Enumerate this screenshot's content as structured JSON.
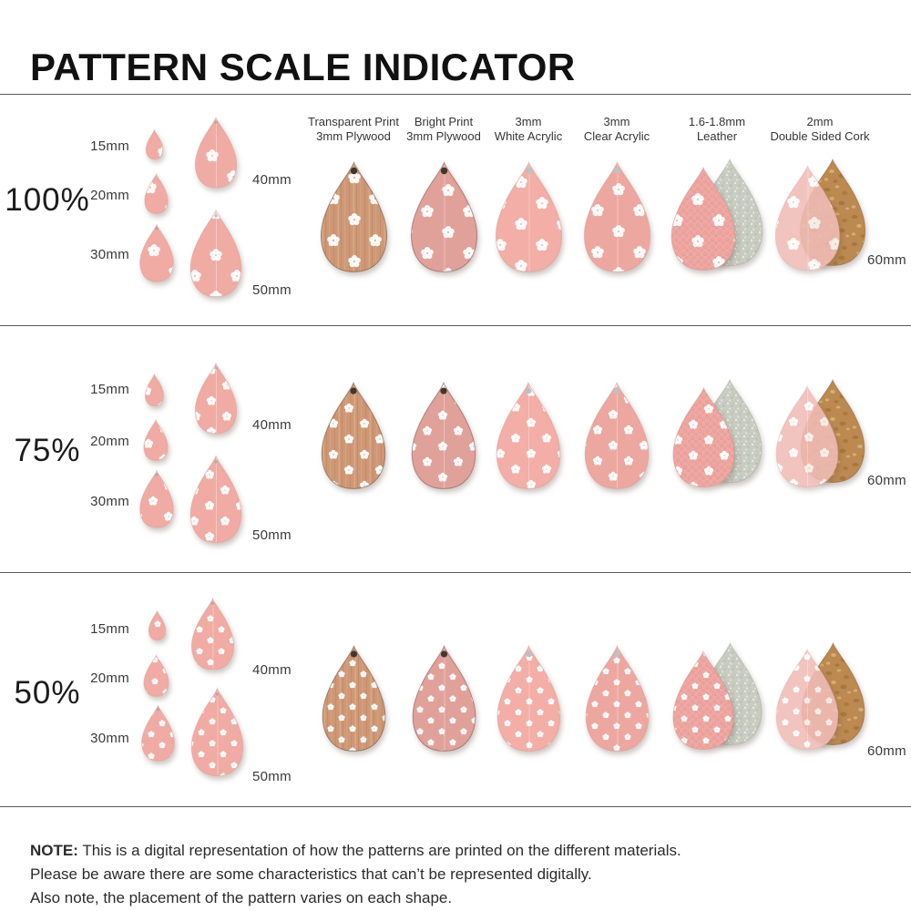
{
  "title": "PATTERN SCALE INDICATOR",
  "columns": [
    {
      "line1": "Transparent Print",
      "line2": "3mm Plywood"
    },
    {
      "line1": "Bright Print",
      "line2": "3mm Plywood"
    },
    {
      "line1": "3mm",
      "line2": "White Acrylic"
    },
    {
      "line1": "3mm",
      "line2": "Clear Acrylic"
    },
    {
      "line1": "1.6-1.8mm",
      "line2": "Leather"
    },
    {
      "line1": "2mm",
      "line2": "Double Sided Cork"
    }
  ],
  "rows": [
    {
      "scale_label": "100%",
      "sizes": [
        "15mm",
        "20mm",
        "30mm",
        "40mm",
        "50mm"
      ],
      "sample_size": "60mm"
    },
    {
      "scale_label": "75%",
      "sizes": [
        "15mm",
        "20mm",
        "30mm",
        "40mm",
        "50mm"
      ],
      "sample_size": "60mm"
    },
    {
      "scale_label": "50%",
      "sizes": [
        "15mm",
        "20mm",
        "30mm",
        "40mm",
        "50mm"
      ],
      "sample_size": "60mm"
    }
  ],
  "note": {
    "label": "NOTE:",
    "line1": "This is a digital representation of how the patterns are printed on the different materials.",
    "line2": "Please be aware there are some characteristics that can’t be represented digitally.",
    "line3": "Also note, the placement of the pattern varies on each shape."
  },
  "colors": {
    "pattern_pink": "#F0ABA4",
    "plywood_wood": "#CE9876",
    "bright_plywood": "#E1A19B",
    "white_acrylic": "#F2AEA7",
    "clear_acrylic": "#EDA7A1",
    "leather_pink": "#EFA8A4",
    "suede_grey": "#C9CCC1",
    "cork_tan": "#BC8950",
    "cork_front_pink": "#F1BCB7",
    "flower_white": "#FFFFFF"
  }
}
